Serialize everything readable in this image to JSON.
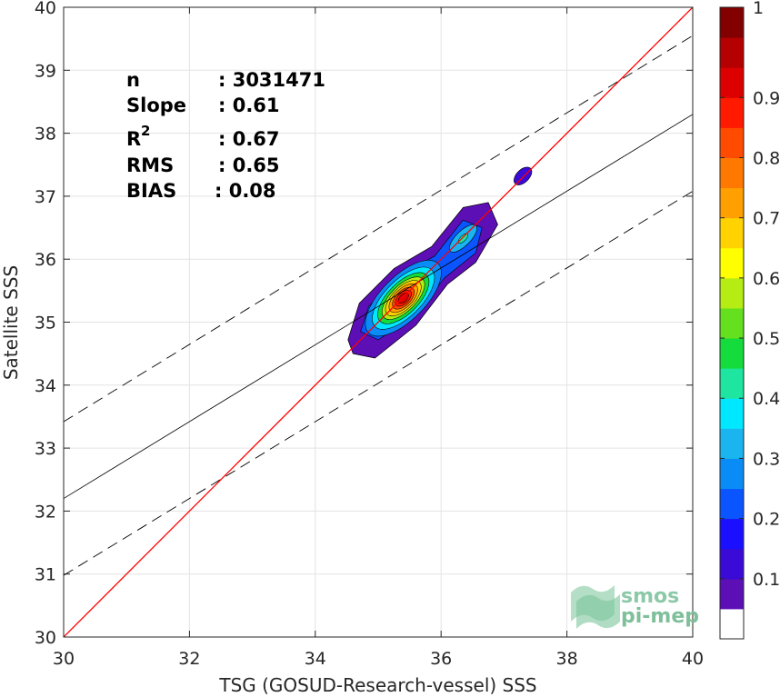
{
  "chart_data": {
    "type": "scatter-density",
    "xlabel": "TSG (GOSUD-Research-vessel) SSS",
    "ylabel": "Satellite SSS",
    "xlim": [
      30,
      40
    ],
    "ylim": [
      30,
      40
    ],
    "x_ticks": [
      "30",
      "32",
      "34",
      "36",
      "38",
      "40"
    ],
    "y_ticks": [
      "30",
      "31",
      "32",
      "33",
      "34",
      "35",
      "36",
      "37",
      "38",
      "39",
      "40"
    ],
    "grid": true,
    "stats": [
      {
        "label": "n",
        "value": ": 3031471"
      },
      {
        "label": "Slope",
        "value": ": 0.61"
      },
      {
        "label": "R",
        "sup": "2",
        "value": ": 0.67"
      },
      {
        "label": "RMS",
        "value": ": 0.65"
      },
      {
        "label": "BIAS",
        "value": ": 0.08"
      }
    ],
    "identity_line": {
      "color": "#ff0000",
      "from": [
        30,
        30
      ],
      "to": [
        40,
        40
      ]
    },
    "fit_line": {
      "from": [
        30,
        32.2
      ],
      "to": [
        40,
        38.3
      ]
    },
    "fit_band_upper": {
      "from": [
        30,
        33.42
      ],
      "to": [
        40,
        39.55
      ]
    },
    "fit_band_lower": {
      "from": [
        30,
        30.98
      ],
      "to": [
        40,
        37.08
      ]
    },
    "density_centers": [
      [
        35.4,
        35.38
      ],
      [
        36.35,
        36.33
      ],
      [
        37.3,
        37.32
      ]
    ],
    "colorbar": {
      "ticks": [
        "0.1",
        "0.2",
        "0.3",
        "0.4",
        "0.5",
        "0.6",
        "0.7",
        "0.8",
        "0.9",
        "1"
      ],
      "colors": [
        "#ffffff",
        "#5b0fb5",
        "#3a0ad6",
        "#1a10ff",
        "#0a55ff",
        "#0a8cf7",
        "#1ab4ee",
        "#00e8ff",
        "#1ee6a0",
        "#14dc3c",
        "#64e01e",
        "#b4ec14",
        "#ffff00",
        "#ffd200",
        "#ff9f00",
        "#ff7800",
        "#ff4b00",
        "#ff1a00",
        "#dc0000",
        "#b40000",
        "#820000"
      ]
    },
    "logo": {
      "line1": "smos",
      "line2": "pi-mep"
    }
  }
}
